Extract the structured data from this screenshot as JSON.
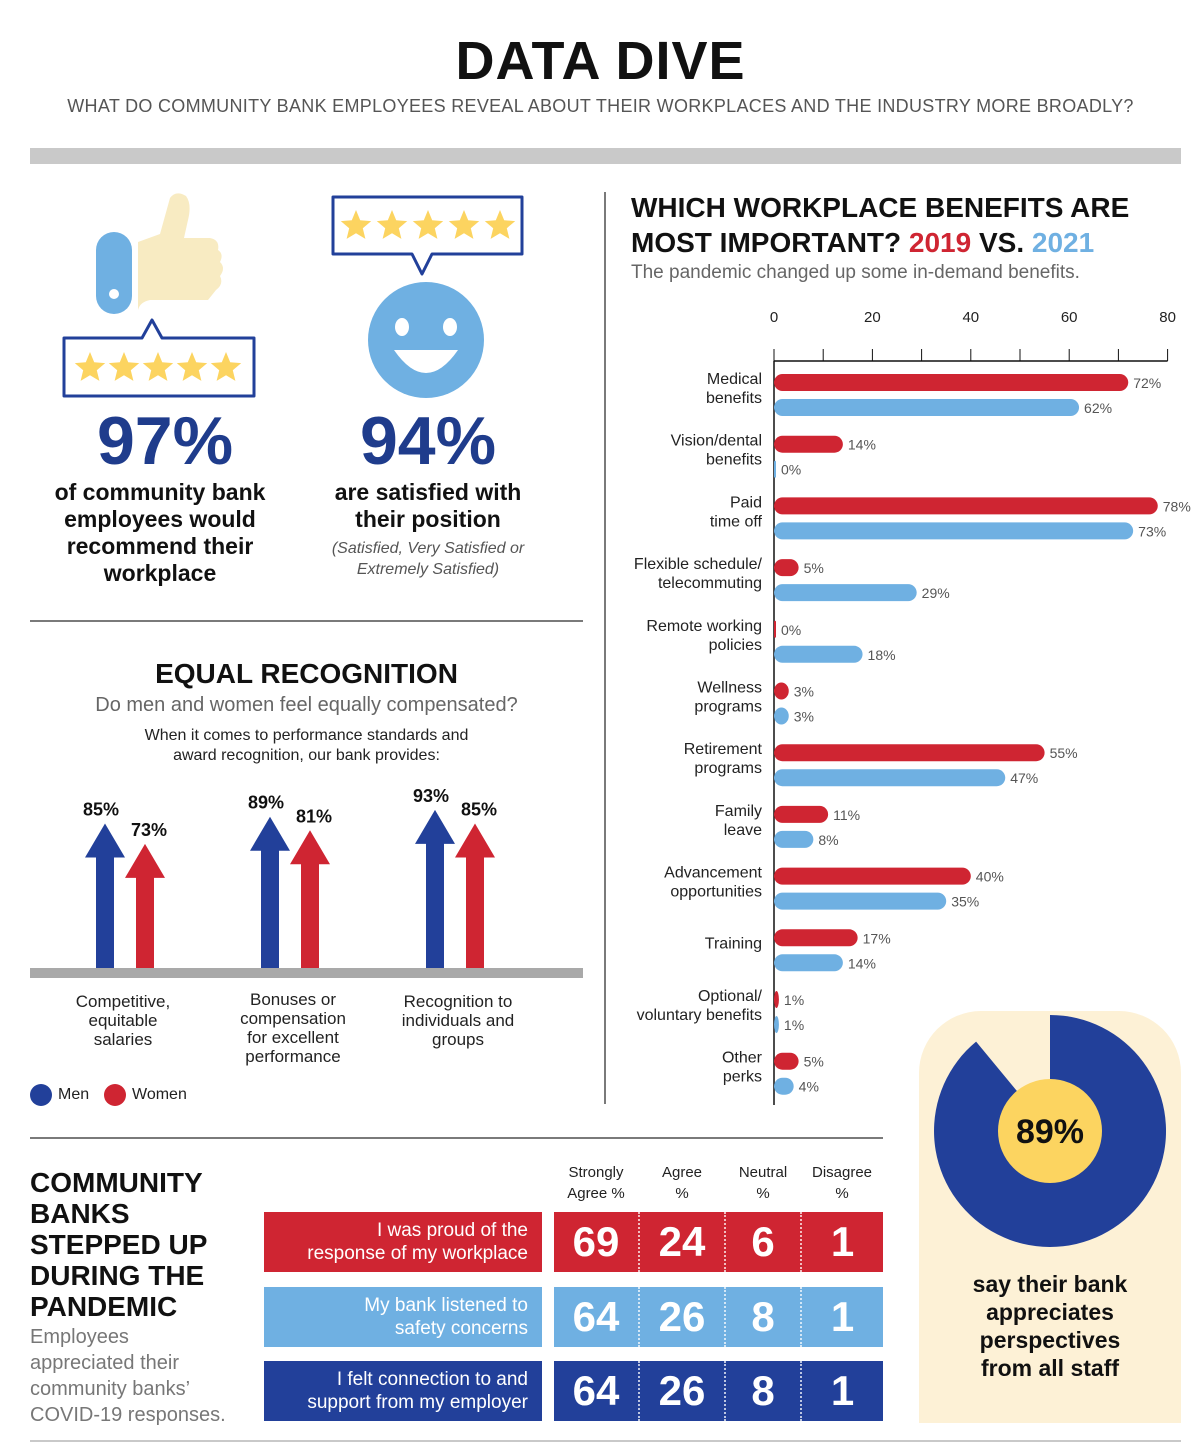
{
  "header": {
    "title": "DATA DIVE",
    "subtitle": "WHAT DO COMMUNITY BANK EMPLOYEES REVEAL ABOUT THEIR WORKPLACES AND THE INDUSTRY MORE BROADLY?"
  },
  "stat_recommend": {
    "value": "97%",
    "text": [
      "of community bank",
      "employees would",
      "recommend their",
      "workplace"
    ],
    "stars": 5
  },
  "stat_satisfied": {
    "value": "94%",
    "text": [
      "are satisfied with",
      "their position"
    ],
    "note": [
      "(Satisfied, Very Satisfied or",
      "Extremely Satisfied)"
    ],
    "stars": 5
  },
  "equal_recognition": {
    "heading": "EQUAL RECOGNITION",
    "subheading": "Do men and women feel equally compensated?",
    "note": [
      "When it comes to performance standards and",
      "award recognition, our bank provides:"
    ],
    "legend": {
      "men": "Men",
      "women": "Women"
    },
    "colors": {
      "men": "#22409a",
      "women": "#cf2532"
    },
    "groups": [
      {
        "label": [
          "Competitive,",
          "equitable",
          "salaries"
        ],
        "men": 85,
        "women": 73,
        "men_label": "85%",
        "women_label": "73%"
      },
      {
        "label": [
          "Bonuses or",
          "compensation",
          "for excellent",
          "performance"
        ],
        "men": 89,
        "women": 81,
        "men_label": "89%",
        "women_label": "81%"
      },
      {
        "label": [
          "Recognition to",
          "individuals and",
          "groups"
        ],
        "men": 93,
        "women": 85,
        "men_label": "93%",
        "women_label": "85%"
      }
    ]
  },
  "benefits": {
    "title_line1": "WHICH WORKPLACE BENEFITS ARE",
    "title_line2_prefix": "MOST IMPORTANT?",
    "title_2019": "2019",
    "title_vs": "VS.",
    "title_2021": "2021",
    "subtitle": "The pandemic changed up some in-demand benefits."
  },
  "chart_data": {
    "type": "bar",
    "orientation": "horizontal",
    "categories": [
      [
        "Medical",
        "benefits"
      ],
      [
        "Vision/dental",
        "benefits"
      ],
      [
        "Paid",
        "time off"
      ],
      [
        "Flexible schedule/",
        "telecommuting"
      ],
      [
        "Remote working",
        "policies"
      ],
      [
        "Wellness",
        "programs"
      ],
      [
        "Retirement",
        "programs"
      ],
      [
        "Family",
        "leave"
      ],
      [
        "Advancement",
        "opportunities"
      ],
      [
        "Training"
      ],
      [
        "Optional/",
        "voluntary benefits"
      ],
      [
        "Other",
        "perks"
      ]
    ],
    "series": [
      {
        "name": "2019",
        "color": "#cf2532",
        "values": [
          72,
          14,
          78,
          5,
          0,
          3,
          55,
          11,
          40,
          17,
          1,
          5
        ]
      },
      {
        "name": "2021",
        "color": "#6fb0e2",
        "values": [
          62,
          0,
          73,
          29,
          18,
          3,
          47,
          8,
          35,
          14,
          1,
          4
        ]
      }
    ],
    "xticks": [
      0,
      20,
      40,
      60,
      80
    ],
    "xlim": [
      0,
      80
    ],
    "label_suffix": "%"
  },
  "pandemic": {
    "heading": [
      "COMMUNITY",
      "BANKS",
      "STEPPED UP",
      "DURING THE",
      "PANDEMIC"
    ],
    "subheading": [
      "Employees",
      "appreciated their",
      "community banks’",
      "COVID-19 responses."
    ],
    "columns": [
      [
        "Strongly",
        "Agree %"
      ],
      [
        "Agree",
        "%"
      ],
      [
        "Neutral",
        "%"
      ],
      [
        "Disagree",
        "%"
      ]
    ],
    "rows": [
      {
        "label": [
          "I was proud of the",
          "response of my workplace"
        ],
        "color": "#cf2532",
        "values": [
          "69",
          "24",
          "6",
          "1"
        ]
      },
      {
        "label": [
          "My bank listened to",
          "safety concerns"
        ],
        "color": "#6fb0e2",
        "values": [
          "64",
          "26",
          "8",
          "1"
        ]
      },
      {
        "label": [
          "I felt connection to and",
          "support from my employer"
        ],
        "color": "#22409a",
        "values": [
          "64",
          "26",
          "8",
          "1"
        ]
      }
    ]
  },
  "appreciation": {
    "value": "89%",
    "percent": 89,
    "text": [
      "say their bank",
      "appreciates",
      "perspectives",
      "from all staff"
    ],
    "colors": {
      "ring": "#22409a",
      "center": "#fcd460",
      "background": "#fdf1d6"
    }
  }
}
